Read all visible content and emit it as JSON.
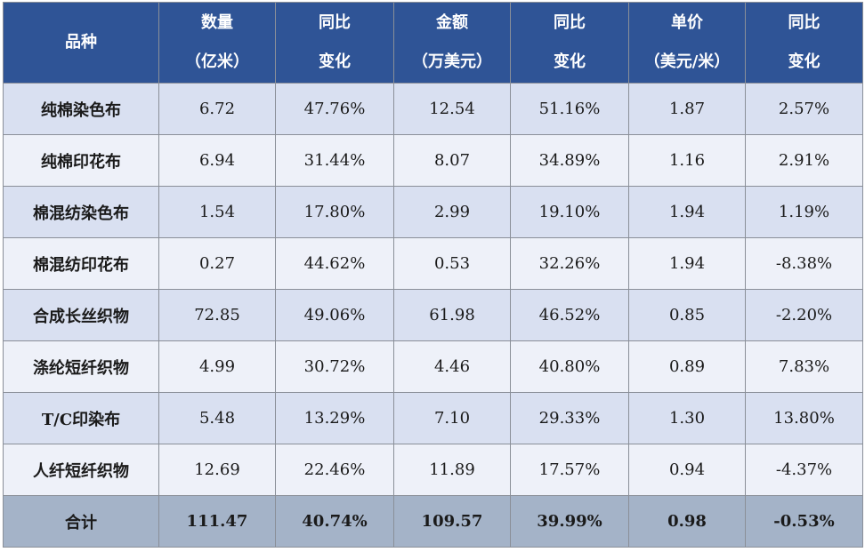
{
  "table": {
    "headers": [
      {
        "line1": "品种",
        "line2": ""
      },
      {
        "line1": "数量",
        "line2": "（亿米）"
      },
      {
        "line1": "同比",
        "line2": "变化"
      },
      {
        "line1": "金额",
        "line2": "（万美元）"
      },
      {
        "line1": "同比",
        "line2": "变化"
      },
      {
        "line1": "单价",
        "line2": "（美元/米）"
      },
      {
        "line1": "同比",
        "line2": "变化"
      }
    ],
    "rows": [
      [
        "纯棉染色布",
        "6.72",
        "47.76%",
        "12.54",
        "51.16%",
        "1.87",
        "2.57%"
      ],
      [
        "纯棉印花布",
        "6.94",
        "31.44%",
        "8.07",
        "34.89%",
        "1.16",
        "2.91%"
      ],
      [
        "棉混纺染色布",
        "1.54",
        "17.80%",
        "2.99",
        "19.10%",
        "1.94",
        "1.19%"
      ],
      [
        "棉混纺印花布",
        "0.27",
        "44.62%",
        "0.53",
        "32.26%",
        "1.94",
        "-8.38%"
      ],
      [
        "合成长丝织物",
        "72.85",
        "49.06%",
        "61.98",
        "46.52%",
        "0.85",
        "-2.20%"
      ],
      [
        "涤纶短纤织物",
        "4.99",
        "30.72%",
        "4.46",
        "40.80%",
        "0.89",
        "7.83%"
      ],
      [
        "T/C印染布",
        "5.48",
        "13.29%",
        "7.10",
        "29.33%",
        "1.30",
        "13.80%"
      ],
      [
        "人纤短纤织物",
        "12.69",
        "22.46%",
        "11.89",
        "17.57%",
        "0.94",
        "-4.37%"
      ]
    ],
    "total": [
      "合计",
      "111.47",
      "40.74%",
      "109.57",
      "39.99%",
      "0.98",
      "-0.53%"
    ]
  },
  "colors": {
    "header_bg": "#2f5496",
    "row_odd_bg": "#d9e0f1",
    "row_even_bg": "#eef1f9",
    "total_bg": "#a4b3c8"
  }
}
